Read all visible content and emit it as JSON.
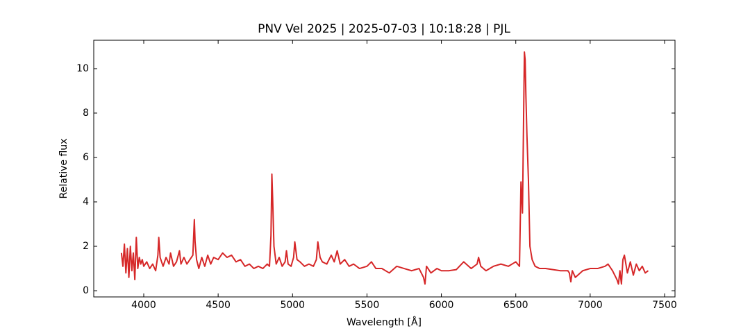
{
  "chart_data": {
    "type": "line",
    "title": "PNV Vel 2025 | 2025-07-03 | 10:18:28 | PJL",
    "xlabel": "Wavelength [Å]",
    "ylabel": "Relative flux",
    "color": "#d62728",
    "xlim": [
      3664,
      7570
    ],
    "ylim": [
      -0.28,
      11.28
    ],
    "xticks": [
      4000,
      4500,
      5000,
      5500,
      6000,
      6500,
      7000,
      7500
    ],
    "yticks": [
      0,
      2,
      4,
      6,
      8,
      10
    ],
    "x": [
      3850,
      3860,
      3870,
      3880,
      3890,
      3900,
      3910,
      3920,
      3930,
      3940,
      3950,
      3960,
      3970,
      3980,
      3990,
      4000,
      4020,
      4040,
      4060,
      4080,
      4095,
      4101,
      4110,
      4130,
      4150,
      4170,
      4180,
      4200,
      4220,
      4240,
      4250,
      4270,
      4290,
      4310,
      4330,
      4340,
      4345,
      4355,
      4370,
      4390,
      4410,
      4430,
      4450,
      4470,
      4500,
      4530,
      4560,
      4590,
      4620,
      4650,
      4680,
      4710,
      4740,
      4770,
      4800,
      4830,
      4845,
      4855,
      4861,
      4866,
      4875,
      4890,
      4910,
      4930,
      4950,
      4959,
      4970,
      4990,
      5007,
      5015,
      5030,
      5050,
      5080,
      5110,
      5140,
      5160,
      5170,
      5185,
      5200,
      5230,
      5260,
      5280,
      5300,
      5320,
      5350,
      5380,
      5410,
      5450,
      5500,
      5530,
      5560,
      5600,
      5650,
      5700,
      5750,
      5800,
      5850,
      5880,
      5890,
      5900,
      5930,
      5970,
      6000,
      6050,
      6100,
      6150,
      6200,
      6240,
      6250,
      6265,
      6300,
      6350,
      6400,
      6450,
      6500,
      6525,
      6535,
      6545,
      6553,
      6558,
      6563,
      6568,
      6575,
      6585,
      6595,
      6610,
      6630,
      6660,
      6700,
      6750,
      6800,
      6850,
      6860,
      6870,
      6880,
      6900,
      6950,
      7000,
      7050,
      7100,
      7120,
      7150,
      7180,
      7190,
      7200,
      7210,
      7220,
      7230,
      7250,
      7270,
      7290,
      7310,
      7330,
      7350,
      7370,
      7390
    ],
    "values": [
      1.7,
      1.1,
      2.1,
      0.8,
      1.9,
      0.6,
      2.0,
      0.9,
      1.7,
      0.5,
      2.4,
      1.0,
      1.5,
      1.2,
      1.4,
      1.1,
      1.3,
      1.0,
      1.2,
      0.9,
      1.6,
      2.4,
      1.5,
      1.1,
      1.5,
      1.2,
      1.7,
      1.1,
      1.3,
      1.8,
      1.2,
      1.5,
      1.2,
      1.4,
      1.6,
      3.2,
      2.2,
      1.4,
      1.0,
      1.5,
      1.1,
      1.6,
      1.2,
      1.5,
      1.4,
      1.7,
      1.5,
      1.6,
      1.3,
      1.4,
      1.1,
      1.2,
      1.0,
      1.1,
      1.0,
      1.2,
      1.1,
      2.5,
      5.25,
      4.2,
      2.0,
      1.2,
      1.5,
      1.1,
      1.3,
      1.8,
      1.2,
      1.1,
      1.5,
      2.2,
      1.4,
      1.3,
      1.1,
      1.2,
      1.1,
      1.4,
      2.2,
      1.5,
      1.3,
      1.2,
      1.6,
      1.3,
      1.8,
      1.2,
      1.4,
      1.1,
      1.2,
      1.0,
      1.1,
      1.3,
      1.0,
      1.0,
      0.8,
      1.1,
      1.0,
      0.9,
      1.0,
      0.6,
      0.3,
      1.1,
      0.8,
      1.0,
      0.9,
      0.9,
      0.95,
      1.3,
      1.0,
      1.2,
      1.5,
      1.1,
      0.9,
      1.1,
      1.2,
      1.1,
      1.3,
      1.1,
      4.9,
      3.5,
      8.0,
      10.75,
      10.4,
      8.8,
      7.0,
      5.0,
      2.0,
      1.4,
      1.1,
      1.0,
      1.0,
      0.95,
      0.9,
      0.9,
      0.8,
      0.4,
      0.9,
      0.6,
      0.9,
      1.0,
      1.0,
      1.1,
      1.2,
      0.9,
      0.5,
      0.3,
      0.9,
      0.3,
      1.4,
      1.6,
      0.8,
      1.3,
      0.7,
      1.2,
      0.9,
      1.1,
      0.8,
      0.9
    ]
  }
}
